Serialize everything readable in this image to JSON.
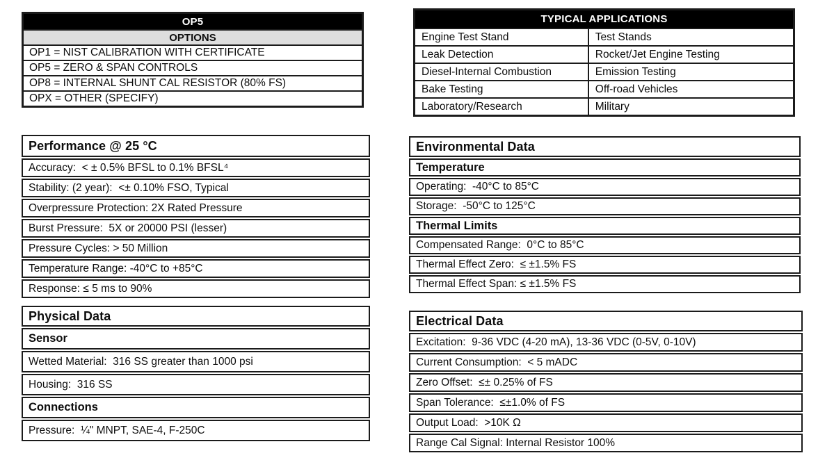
{
  "colors": {
    "page_bg": "#ffffff",
    "table_header_bg": "#000000",
    "table_header_text": "#ffffff",
    "options_subheader_bg": "#dedede",
    "border": "#1b1b1b",
    "text": "#0d0d0d"
  },
  "options_table": {
    "title": "OP5",
    "subtitle": "OPTIONS",
    "rows": [
      "OP1 = NIST CALIBRATION WITH CERTIFICATE",
      "OP5 = ZERO & SPAN CONTROLS",
      "OP8 = INTERNAL SHUNT CAL RESISTOR (80% FS)",
      "OPX = OTHER (SPECIFY)"
    ]
  },
  "applications_table": {
    "title": "TYPICAL APPLICATIONS",
    "rows": [
      [
        "Engine Test Stand",
        "Test Stands"
      ],
      [
        "Leak Detection",
        "Rocket/Jet Engine Testing"
      ],
      [
        "Diesel-Internal Combustion",
        "Emission Testing"
      ],
      [
        "Bake Testing",
        "Off-road Vehicles"
      ],
      [
        "Laboratory/Research",
        "Military"
      ]
    ]
  },
  "performance_table": {
    "title": "Performance @ 25 °C",
    "rows": [
      {
        "text": "Accuracy:  < ± 0.5% BFSL to 0.1% BFSL⁴",
        "heading": false
      },
      {
        "text": "Stability: (2 year):  <± 0.10% FSO, Typical",
        "heading": false
      },
      {
        "text": "Overpressure Protection: 2X Rated Pressure",
        "heading": false
      },
      {
        "text": "Burst Pressure:  5X or 20000 PSI (lesser)",
        "heading": false
      },
      {
        "text": "Pressure Cycles: > 50 Million",
        "heading": false
      },
      {
        "text": "Temperature Range: -40°C to +85°C",
        "heading": false
      },
      {
        "text": "Response: ≤ 5 ms to 90%",
        "heading": false
      }
    ]
  },
  "environmental_table": {
    "title": "Environmental Data",
    "rows": [
      {
        "text": "Temperature",
        "heading": true
      },
      {
        "text": "Operating:  -40°C to 85°C",
        "heading": false
      },
      {
        "text": "Storage:  -50°C to 125°C",
        "heading": false
      },
      {
        "text": "Thermal Limits",
        "heading": true
      },
      {
        "text": "Compensated Range:  0°C to 85°C",
        "heading": false
      },
      {
        "text": "Thermal Effect Zero:  ≤ ±1.5% FS",
        "heading": false
      },
      {
        "text": "Thermal Effect Span: ≤ ±1.5% FS",
        "heading": false
      }
    ]
  },
  "physical_table": {
    "title": "Physical Data",
    "rows": [
      {
        "text": "Sensor",
        "heading": true
      },
      {
        "text": "Wetted Material:  316 SS greater than 1000 psi",
        "heading": false
      },
      {
        "text": "Housing:  316 SS",
        "heading": false
      },
      {
        "text": "Connections",
        "heading": true
      },
      {
        "text": "Pressure:  ¼\" MNPT, SAE-4, F-250C",
        "heading": false
      }
    ]
  },
  "electrical_table": {
    "title": "Electrical Data",
    "rows": [
      {
        "text": "Excitation:  9-36 VDC (4-20 mA), 13-36 VDC (0-5V, 0-10V)",
        "heading": false
      },
      {
        "text": "Current Consumption:  < 5 mADC",
        "heading": false
      },
      {
        "text": "Zero Offset:  ≤± 0.25% of FS",
        "heading": false
      },
      {
        "text": "Span Tolerance:  ≤±1.0% of FS",
        "heading": false
      },
      {
        "text": "Output Load:  >10K Ω",
        "heading": false
      },
      {
        "text": "Range Cal Signal: Internal Resistor 100%",
        "heading": false
      }
    ]
  }
}
